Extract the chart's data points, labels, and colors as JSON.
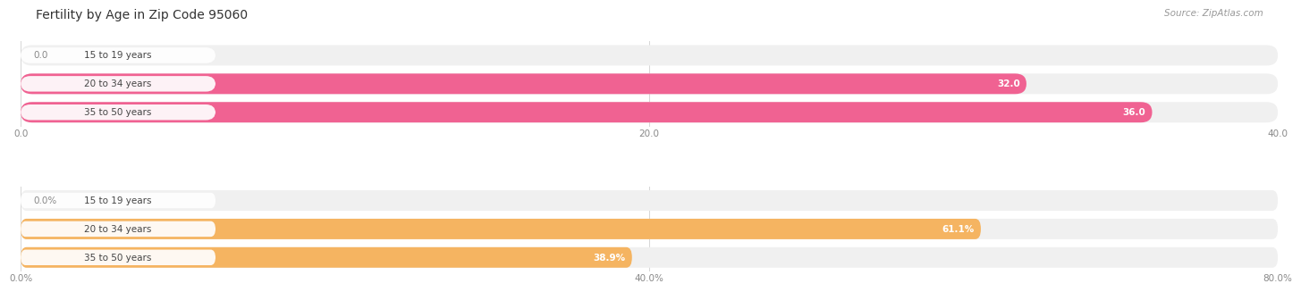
{
  "title": "Fertility by Age in Zip Code 95060",
  "source": "Source: ZipAtlas.com",
  "chart1": {
    "categories": [
      "15 to 19 years",
      "20 to 34 years",
      "35 to 50 years"
    ],
    "values": [
      0.0,
      32.0,
      36.0
    ],
    "xlim": [
      0,
      40
    ],
    "xticks": [
      0.0,
      20.0,
      40.0
    ],
    "xtick_labels": [
      "0.0",
      "20.0",
      "40.0"
    ],
    "bar_color": "#F06292",
    "bar_bg_color": "#F0F0F0",
    "value_threshold": 5
  },
  "chart2": {
    "categories": [
      "15 to 19 years",
      "20 to 34 years",
      "35 to 50 years"
    ],
    "values": [
      0.0,
      61.1,
      38.9
    ],
    "xlim": [
      0,
      80
    ],
    "xticks": [
      0.0,
      40.0,
      80.0
    ],
    "xtick_labels": [
      "0.0%",
      "40.0%",
      "80.0%"
    ],
    "bar_color": "#F5B461",
    "bar_bg_color": "#F0F0F0",
    "value_threshold": 10
  },
  "bg_color": "#FFFFFF",
  "grid_color": "#CCCCCC",
  "title_fontsize": 10,
  "source_fontsize": 7.5,
  "label_fontsize": 7.5,
  "value_fontsize": 7.5,
  "tick_fontsize": 7.5,
  "bar_height": 0.72
}
